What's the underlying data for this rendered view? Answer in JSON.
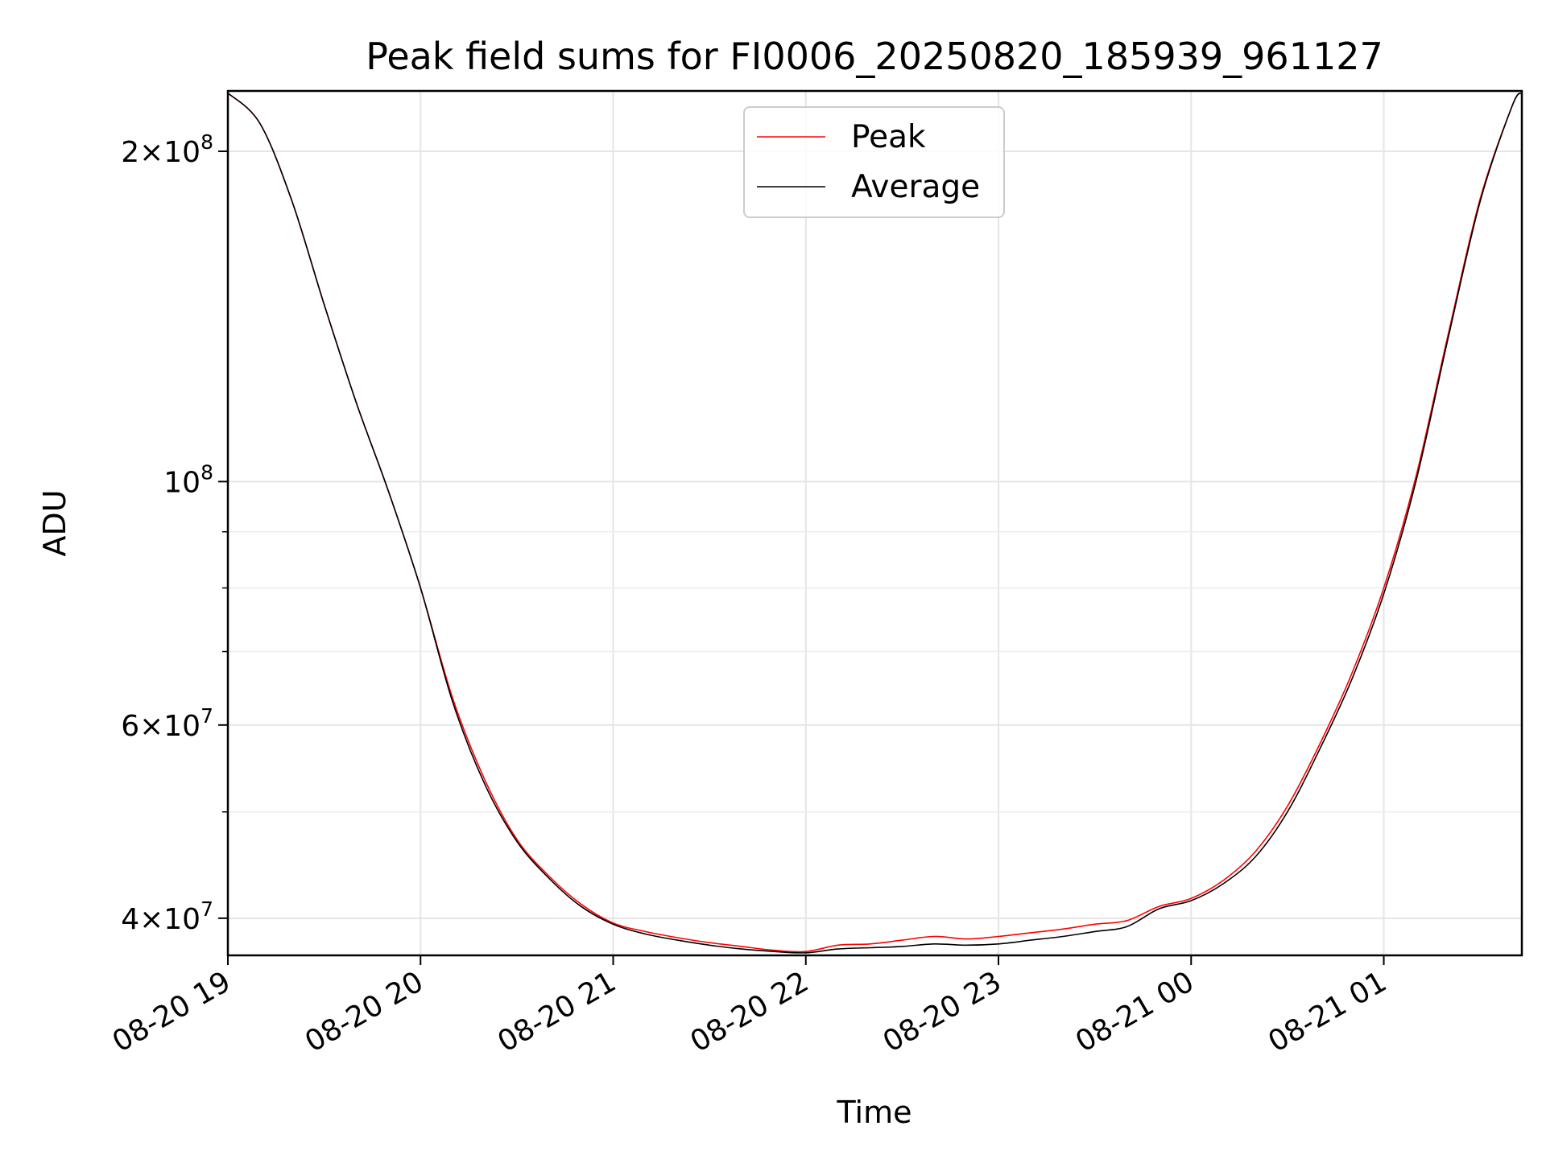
{
  "chart_data": {
    "type": "line",
    "title": "Peak field sums for FI0006_20250820_185939_961127",
    "xlabel": "Time",
    "ylabel": "ADU",
    "x_scale": "time",
    "y_scale": "log",
    "xlim": [
      "2025-08-20 19:00",
      "2025-08-21 01:43"
    ],
    "ylim": [
      37000000,
      227000000
    ],
    "grid": true,
    "legend": {
      "placement": "top-center",
      "entries": [
        "Peak",
        "Average"
      ]
    },
    "x_ticks": [
      "08-20 19",
      "08-20 20",
      "08-20 21",
      "08-20 22",
      "08-20 23",
      "08-21 00",
      "08-21 01"
    ],
    "y_ticks": [
      {
        "value": 40000000,
        "mantissa": "4",
        "exponent": "7"
      },
      {
        "value": 60000000,
        "mantissa": "6",
        "exponent": "7"
      },
      {
        "value": 100000000,
        "mantissa": "",
        "exponent": "8"
      },
      {
        "value": 200000000,
        "mantissa": "2",
        "exponent": "8"
      }
    ],
    "y_minor_ticks": [
      50000000,
      70000000,
      80000000,
      90000000
    ],
    "x": [
      "2025-08-20 19:00",
      "2025-08-20 19:10",
      "2025-08-20 19:20",
      "2025-08-20 19:30",
      "2025-08-20 19:40",
      "2025-08-20 19:50",
      "2025-08-20 20:00",
      "2025-08-20 20:10",
      "2025-08-20 20:20",
      "2025-08-20 20:30",
      "2025-08-20 20:40",
      "2025-08-20 20:50",
      "2025-08-20 21:00",
      "2025-08-20 21:10",
      "2025-08-20 21:20",
      "2025-08-20 21:30",
      "2025-08-20 21:40",
      "2025-08-20 21:50",
      "2025-08-20 22:00",
      "2025-08-20 22:10",
      "2025-08-20 22:20",
      "2025-08-20 22:30",
      "2025-08-20 22:40",
      "2025-08-20 22:50",
      "2025-08-20 23:00",
      "2025-08-20 23:10",
      "2025-08-20 23:20",
      "2025-08-20 23:30",
      "2025-08-20 23:40",
      "2025-08-20 23:50",
      "2025-08-21 00:00",
      "2025-08-21 00:10",
      "2025-08-21 00:20",
      "2025-08-21 00:30",
      "2025-08-21 00:40",
      "2025-08-21 00:50",
      "2025-08-21 01:00",
      "2025-08-21 01:10",
      "2025-08-21 01:20",
      "2025-08-21 01:30",
      "2025-08-21 01:40",
      "2025-08-21 01:43"
    ],
    "series": [
      {
        "name": "Average",
        "color": "#000000",
        "values": [
          226000000,
          212000000,
          180000000,
          145000000,
          118000000,
          98000000,
          80000000,
          63000000,
          53000000,
          47000000,
          43500000,
          41000000,
          39500000,
          38700000,
          38200000,
          37800000,
          37500000,
          37300000,
          37200000,
          37500000,
          37600000,
          37700000,
          37900000,
          37800000,
          37900000,
          38200000,
          38500000,
          38900000,
          39300000,
          40800000,
          41500000,
          43000000,
          45500000,
          50000000,
          57000000,
          66000000,
          79000000,
          100000000,
          135000000,
          180000000,
          220000000,
          226000000
        ]
      },
      {
        "name": "Peak",
        "color": "#ff0000",
        "values": [
          226000000,
          212000000,
          180000000,
          145000000,
          118000000,
          98000000,
          80000000,
          63500000,
          53500000,
          47200000,
          43700000,
          41200000,
          39600000,
          38900000,
          38400000,
          38000000,
          37700000,
          37400000,
          37300000,
          37800000,
          37900000,
          38200000,
          38500000,
          38300000,
          38500000,
          38800000,
          39100000,
          39500000,
          39800000,
          41000000,
          41700000,
          43300000,
          46000000,
          50600000,
          57600000,
          66800000,
          80000000,
          101000000,
          136000000,
          181000000,
          220000000,
          226000000
        ]
      }
    ]
  }
}
